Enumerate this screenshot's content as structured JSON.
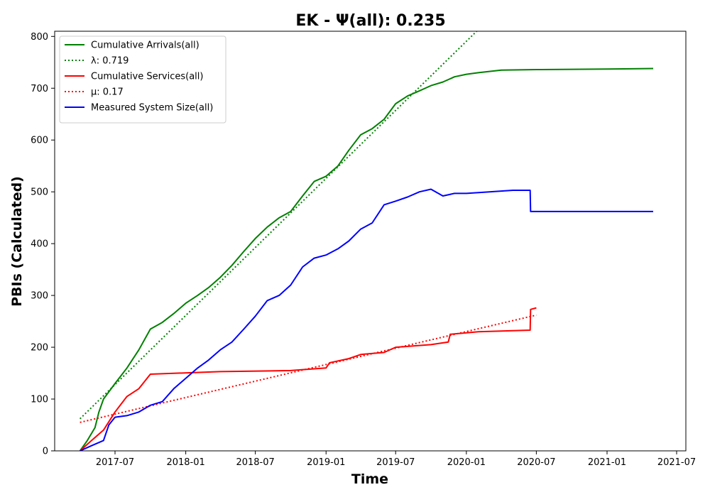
{
  "chart_data": {
    "type": "line",
    "title": "EK -  Ψ(all): 0.235",
    "xlabel": "Time",
    "ylabel": "PBIs (Calculated)",
    "xlim": [
      "2017-01-25",
      "2021-07-25"
    ],
    "ylim": [
      0,
      810
    ],
    "x_ticks": [
      {
        "date": "2017-07-01",
        "label": "2017-07"
      },
      {
        "date": "2018-01-01",
        "label": "2018-01"
      },
      {
        "date": "2018-07-01",
        "label": "2018-07"
      },
      {
        "date": "2019-01-01",
        "label": "2019-01"
      },
      {
        "date": "2019-07-01",
        "label": "2019-07"
      },
      {
        "date": "2020-01-01",
        "label": "2020-01"
      },
      {
        "date": "2020-07-01",
        "label": "2020-07"
      },
      {
        "date": "2021-01-01",
        "label": "2021-01"
      },
      {
        "date": "2021-07-01",
        "label": "2021-07"
      }
    ],
    "y_ticks": [
      0,
      100,
      200,
      300,
      400,
      500,
      600,
      700,
      800
    ],
    "grid": false,
    "legend": {
      "position": "top-left"
    },
    "series": [
      {
        "name": "Cumulative Arrivals(all)",
        "style": "solid",
        "color": "#008000",
        "points": [
          [
            "2017-04-01",
            0
          ],
          [
            "2017-04-20",
            20
          ],
          [
            "2017-05-10",
            45
          ],
          [
            "2017-05-20",
            75
          ],
          [
            "2017-06-01",
            100
          ],
          [
            "2017-07-01",
            130
          ],
          [
            "2017-08-01",
            160
          ],
          [
            "2017-09-01",
            195
          ],
          [
            "2017-10-01",
            235
          ],
          [
            "2017-11-01",
            248
          ],
          [
            "2017-12-01",
            265
          ],
          [
            "2018-01-01",
            285
          ],
          [
            "2018-02-01",
            300
          ],
          [
            "2018-03-01",
            315
          ],
          [
            "2018-04-01",
            335
          ],
          [
            "2018-05-01",
            358
          ],
          [
            "2018-06-01",
            385
          ],
          [
            "2018-07-01",
            410
          ],
          [
            "2018-08-01",
            432
          ],
          [
            "2018-09-01",
            450
          ],
          [
            "2018-10-01",
            462
          ],
          [
            "2018-11-01",
            492
          ],
          [
            "2018-12-01",
            520
          ],
          [
            "2019-01-01",
            530
          ],
          [
            "2019-02-01",
            550
          ],
          [
            "2019-03-01",
            580
          ],
          [
            "2019-04-01",
            610
          ],
          [
            "2019-05-01",
            622
          ],
          [
            "2019-06-01",
            640
          ],
          [
            "2019-07-01",
            670
          ],
          [
            "2019-08-01",
            685
          ],
          [
            "2019-09-01",
            695
          ],
          [
            "2019-10-01",
            705
          ],
          [
            "2019-11-01",
            712
          ],
          [
            "2019-12-01",
            722
          ],
          [
            "2020-01-01",
            727
          ],
          [
            "2020-02-01",
            730
          ],
          [
            "2020-04-01",
            735
          ],
          [
            "2020-07-01",
            736
          ],
          [
            "2021-01-01",
            737
          ],
          [
            "2021-05-01",
            738
          ]
        ]
      },
      {
        "name": "λ: 0.719",
        "style": "dotted",
        "color": "#008000",
        "points": [
          [
            "2017-04-01",
            62
          ],
          [
            "2020-02-01",
            813
          ]
        ]
      },
      {
        "name": "Cumulative Services(all)",
        "style": "solid",
        "color": "#ff0000",
        "points": [
          [
            "2017-04-01",
            0
          ],
          [
            "2017-05-01",
            20
          ],
          [
            "2017-06-01",
            40
          ],
          [
            "2017-07-01",
            75
          ],
          [
            "2017-08-01",
            105
          ],
          [
            "2017-09-01",
            120
          ],
          [
            "2017-10-01",
            148
          ],
          [
            "2018-04-01",
            153
          ],
          [
            "2018-10-01",
            155
          ],
          [
            "2019-01-01",
            160
          ],
          [
            "2019-01-10",
            170
          ],
          [
            "2019-03-01",
            178
          ],
          [
            "2019-04-01",
            186
          ],
          [
            "2019-06-01",
            190
          ],
          [
            "2019-07-01",
            200
          ],
          [
            "2019-10-01",
            205
          ],
          [
            "2019-11-15",
            210
          ],
          [
            "2019-11-20",
            225
          ],
          [
            "2020-02-01",
            230
          ],
          [
            "2020-06-15",
            233
          ],
          [
            "2020-06-16",
            273
          ],
          [
            "2020-07-01",
            276
          ]
        ]
      },
      {
        "name": "μ: 0.17",
        "style": "dotted",
        "color": "#ff0000",
        "points": [
          [
            "2017-04-01",
            55
          ],
          [
            "2020-07-01",
            262
          ]
        ]
      },
      {
        "name": "Measured System Size(all)",
        "style": "solid",
        "color": "#0000ff",
        "points": [
          [
            "2017-04-01",
            0
          ],
          [
            "2017-05-01",
            10
          ],
          [
            "2017-06-01",
            20
          ],
          [
            "2017-06-15",
            50
          ],
          [
            "2017-07-01",
            65
          ],
          [
            "2017-08-01",
            68
          ],
          [
            "2017-09-01",
            75
          ],
          [
            "2017-10-01",
            88
          ],
          [
            "2017-11-01",
            95
          ],
          [
            "2017-12-01",
            120
          ],
          [
            "2018-01-01",
            140
          ],
          [
            "2018-02-01",
            160
          ],
          [
            "2018-03-01",
            175
          ],
          [
            "2018-04-01",
            195
          ],
          [
            "2018-05-01",
            210
          ],
          [
            "2018-06-01",
            235
          ],
          [
            "2018-07-01",
            260
          ],
          [
            "2018-08-01",
            290
          ],
          [
            "2018-09-01",
            300
          ],
          [
            "2018-10-01",
            320
          ],
          [
            "2018-11-01",
            355
          ],
          [
            "2018-12-01",
            372
          ],
          [
            "2019-01-01",
            378
          ],
          [
            "2019-02-01",
            390
          ],
          [
            "2019-03-01",
            405
          ],
          [
            "2019-04-01",
            428
          ],
          [
            "2019-05-01",
            440
          ],
          [
            "2019-06-01",
            475
          ],
          [
            "2019-07-01",
            482
          ],
          [
            "2019-08-01",
            490
          ],
          [
            "2019-09-01",
            500
          ],
          [
            "2019-10-01",
            505
          ],
          [
            "2019-11-01",
            492
          ],
          [
            "2019-12-01",
            497
          ],
          [
            "2020-01-01",
            497
          ],
          [
            "2020-03-01",
            500
          ],
          [
            "2020-05-01",
            503
          ],
          [
            "2020-06-15",
            503
          ],
          [
            "2020-06-16",
            462
          ],
          [
            "2021-05-01",
            462
          ]
        ]
      }
    ]
  }
}
